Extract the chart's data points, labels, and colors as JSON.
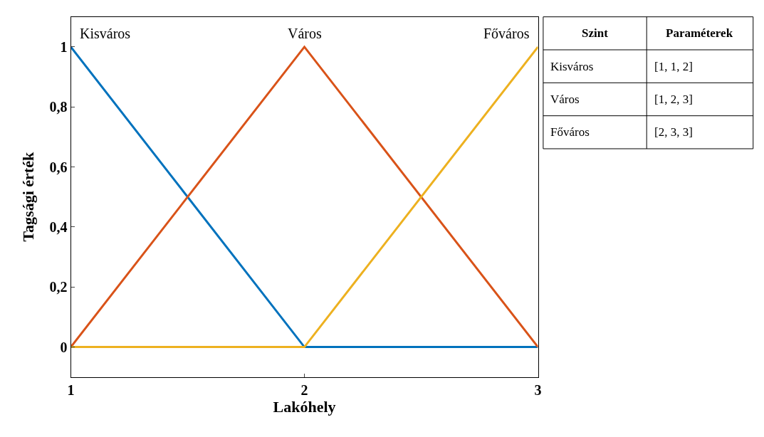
{
  "chart_data": [
    {
      "type": "line",
      "xlabel": "Lakóhely",
      "ylabel": "Tagsági érték",
      "x": [
        1,
        2,
        3
      ],
      "series": [
        {
          "name": "Kisváros",
          "color": "#0072bd",
          "values": [
            1,
            0,
            0
          ]
        },
        {
          "name": "Város",
          "color": "#d95319",
          "values": [
            0,
            1,
            0
          ]
        },
        {
          "name": "Főváros",
          "color": "#edb120",
          "values": [
            0,
            0,
            1
          ]
        }
      ],
      "xlim": [
        1,
        3
      ],
      "xticks": [
        1,
        2,
        3
      ],
      "ylim": [
        -0.1,
        1.1
      ],
      "yticks": [
        {
          "value": 0,
          "label": "0"
        },
        {
          "value": 0.2,
          "label": "0,2"
        },
        {
          "value": 0.4,
          "label": "0,4"
        },
        {
          "value": 0.6,
          "label": "0,6"
        },
        {
          "value": 0.8,
          "label": "0,8"
        },
        {
          "value": 1,
          "label": "1"
        }
      ],
      "legend": false,
      "marker": "none",
      "line_style": "solid"
    },
    {
      "type": "other",
      "annotations": [
        "Szint",
        "Paraméterek",
        "Kisváros",
        "[1, 1, 2]",
        "Város",
        "[1, 2, 3]",
        "Főváros",
        "[2, 3, 3]"
      ]
    }
  ]
}
